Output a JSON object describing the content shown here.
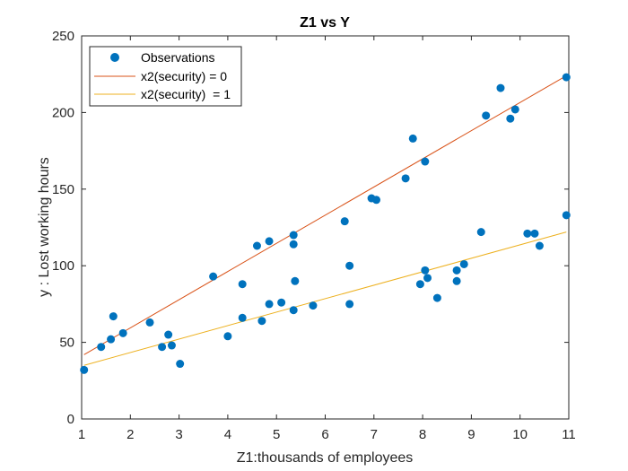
{
  "chart_data": {
    "type": "scatter",
    "title": "Z1 vs Y",
    "xlabel": "Z1:thousands of employees",
    "ylabel": "y : Lost working hours",
    "xlim": [
      1,
      11
    ],
    "ylim": [
      0,
      250
    ],
    "xticks": [
      "1",
      "2",
      "3",
      "4",
      "5",
      "6",
      "7",
      "8",
      "9",
      "10",
      "11"
    ],
    "yticks": [
      "0",
      "50",
      "100",
      "150",
      "200",
      "250"
    ],
    "grid": false,
    "legend_position": "top-left",
    "series": [
      {
        "name": "Observations",
        "kind": "points",
        "color": "#0072BD",
        "points": [
          [
            1.05,
            32
          ],
          [
            1.4,
            47
          ],
          [
            1.6,
            52
          ],
          [
            1.65,
            67
          ],
          [
            1.85,
            56
          ],
          [
            2.4,
            63
          ],
          [
            2.65,
            47
          ],
          [
            2.78,
            55
          ],
          [
            2.85,
            48
          ],
          [
            3.02,
            36
          ],
          [
            3.7,
            93
          ],
          [
            4.0,
            54
          ],
          [
            4.3,
            66
          ],
          [
            4.3,
            88
          ],
          [
            4.6,
            113
          ],
          [
            4.7,
            64
          ],
          [
            4.85,
            116
          ],
          [
            4.85,
            75
          ],
          [
            5.1,
            76
          ],
          [
            5.35,
            120
          ],
          [
            5.35,
            114
          ],
          [
            5.35,
            71
          ],
          [
            5.38,
            90
          ],
          [
            5.75,
            74
          ],
          [
            6.4,
            129
          ],
          [
            6.5,
            100
          ],
          [
            6.5,
            75
          ],
          [
            6.95,
            144
          ],
          [
            7.05,
            143
          ],
          [
            7.65,
            157
          ],
          [
            7.8,
            183
          ],
          [
            7.95,
            88
          ],
          [
            8.05,
            168
          ],
          [
            8.05,
            97
          ],
          [
            8.1,
            92
          ],
          [
            8.3,
            79
          ],
          [
            8.7,
            97
          ],
          [
            8.7,
            90
          ],
          [
            8.85,
            101
          ],
          [
            9.2,
            122
          ],
          [
            9.3,
            198
          ],
          [
            9.6,
            216
          ],
          [
            9.8,
            196
          ],
          [
            9.9,
            202
          ],
          [
            10.15,
            121
          ],
          [
            10.3,
            121
          ],
          [
            10.4,
            113
          ],
          [
            10.95,
            223
          ],
          [
            10.95,
            133
          ]
        ]
      },
      {
        "name": "x2(security) = 0",
        "kind": "line",
        "color": "#D95319",
        "points": [
          [
            1.05,
            42
          ],
          [
            10.95,
            224
          ]
        ]
      },
      {
        "name": "x2(security)  = 1",
        "kind": "line",
        "color": "#EDB120",
        "points": [
          [
            1.05,
            35
          ],
          [
            10.95,
            122
          ]
        ]
      }
    ]
  }
}
